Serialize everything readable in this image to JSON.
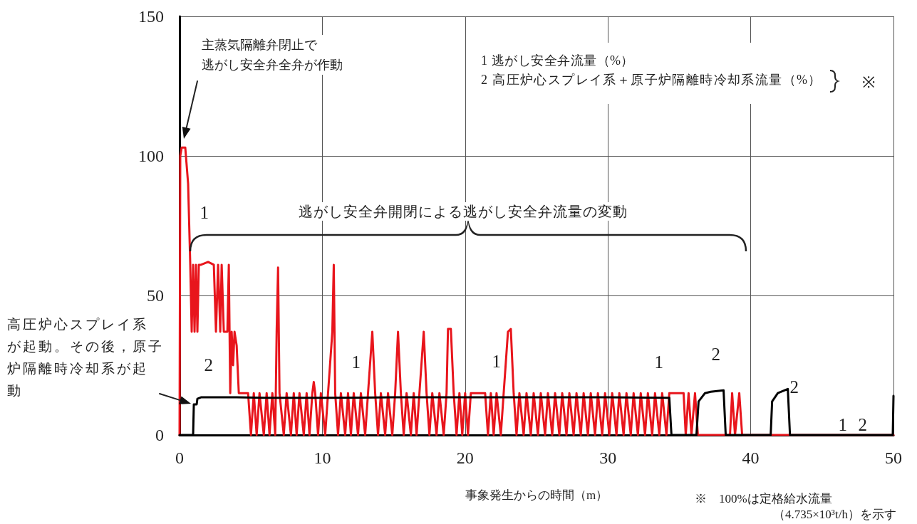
{
  "chart_data": {
    "type": "line",
    "xlabel": "事象発生からの時間（m）",
    "annotations": [
      "主蒸気隔離弁閉止で逃がし安全弁全弁が作動",
      "逃がし安全弁開閉による逃がし安全弁流量の変動",
      "高圧炉心スプレイ系が起動。その後，原子炉隔離時冷却系が起動",
      "1 逃がし安全弁流量（%）",
      "2 高圧炉心スプレイ系＋原子炉隔離時冷却系流量（%）",
      "※",
      "※　100%は定格給水流量（4.735×10³t/h）を示す",
      "1",
      "1",
      "1",
      "2",
      "2",
      "1",
      "2"
    ],
    "series": [
      {
        "name": "1",
        "color": "#e8151c",
        "x": [
          0,
          0.05,
          0.15,
          0.4,
          0.6,
          0.75,
          0.85,
          0.95,
          1.05,
          1.15,
          1.25,
          1.35,
          1.5,
          2,
          2.4,
          2.55,
          2.7,
          2.85,
          2.95,
          3.1,
          3.35,
          3.45,
          3.55,
          3.65,
          3.75,
          3.85,
          4,
          4.15,
          4.8,
          5,
          5.2,
          5.4,
          5.6,
          5.9,
          6.1,
          6.3,
          6.5,
          6.7,
          6.8,
          6.9,
          7,
          7.3,
          7.5,
          7.8,
          8,
          8.2,
          8.4,
          8.7,
          8.9,
          9.1,
          9.3,
          9.4,
          9.5,
          9.7,
          9.9,
          10.2,
          10.4,
          10.7,
          10.8,
          10.9,
          11.1,
          11.3,
          11.6,
          11.8,
          12,
          12.2,
          12.5,
          12.7,
          13,
          13.2,
          13.5,
          13.7,
          13.9,
          14.1,
          14.4,
          14.6,
          14.9,
          15.1,
          15.3,
          15.5,
          15.7,
          15.9,
          16.2,
          16.4,
          16.6,
          16.8,
          17.1,
          17.3,
          17.5,
          17.7,
          18,
          18.2,
          18.5,
          18.7,
          18.8,
          19,
          19.2,
          19.4,
          19.6,
          19.8,
          20,
          20.2,
          20.4,
          21.4,
          21.6,
          21.8,
          22,
          22.2,
          22.5,
          22.7,
          23,
          23.2,
          23.4,
          23.6,
          23.8,
          24.1,
          24.3,
          24.6,
          24.8,
          25.1,
          25.3,
          25.6,
          25.8,
          26.1,
          26.3,
          26.6,
          26.8,
          27.1,
          27.3,
          27.6,
          27.8,
          28.1,
          28.3,
          28.6,
          28.8,
          29.1,
          29.3,
          29.6,
          29.8,
          30.1,
          30.3,
          30.6,
          30.8,
          31.1,
          31.3,
          31.6,
          31.8,
          32.1,
          32.3,
          32.6,
          32.8,
          33.1,
          33.3,
          33.6,
          33.8,
          34.1,
          34.3,
          35.3,
          35.45,
          35.65,
          35.85,
          36.1,
          36.3,
          38.55,
          38.7,
          38.9,
          39.2,
          39.4,
          50
        ],
        "values": [
          0,
          100,
          103,
          103,
          90,
          61,
          37,
          61,
          37,
          61,
          37,
          61,
          61,
          62,
          61,
          37,
          61,
          37,
          61,
          37,
          37,
          61,
          15,
          37,
          25,
          37,
          32,
          15,
          15,
          0,
          15,
          0,
          15,
          0,
          15,
          0,
          15,
          0,
          37,
          60,
          15,
          0,
          15,
          0,
          15,
          0,
          15,
          0,
          15,
          0,
          15,
          19,
          15,
          0,
          15,
          0,
          15,
          37,
          61,
          15,
          0,
          15,
          0,
          15,
          0,
          15,
          0,
          15,
          0,
          15,
          37,
          15,
          0,
          15,
          0,
          15,
          0,
          15,
          37,
          15,
          0,
          15,
          0,
          15,
          0,
          15,
          37,
          15,
          0,
          15,
          0,
          15,
          0,
          15,
          38,
          38,
          15,
          0,
          15,
          0,
          15,
          0,
          15,
          15,
          0,
          15,
          0,
          15,
          0,
          15,
          37,
          38,
          15,
          0,
          15,
          0,
          15,
          0,
          15,
          0,
          15,
          0,
          15,
          0,
          15,
          0,
          15,
          0,
          15,
          0,
          15,
          0,
          15,
          0,
          15,
          0,
          15,
          0,
          15,
          0,
          15,
          0,
          15,
          0,
          15,
          0,
          15,
          0,
          15,
          0,
          15,
          0,
          15,
          0,
          15,
          0,
          15,
          15,
          0,
          15,
          0,
          15,
          0,
          0,
          15,
          0,
          15,
          0,
          0
        ]
      },
      {
        "name": "2",
        "color": "#000000",
        "x": [
          0,
          0.95,
          1,
          1.2,
          1.25,
          1.5,
          2,
          3,
          4,
          6,
          10,
          15,
          20,
          25,
          30,
          34.3,
          34.45,
          36.2,
          36.35,
          36.8,
          37.2,
          38.1,
          38.25,
          41.4,
          41.5,
          41.9,
          42.6,
          42.75,
          49.95,
          50
        ],
        "values": [
          0,
          0,
          11,
          11,
          13,
          13.5,
          13.5,
          13.5,
          13.5,
          13.3,
          13.3,
          13.5,
          13.5,
          13.5,
          13.5,
          13.3,
          0,
          0,
          12,
          15,
          15.5,
          16,
          0,
          0,
          12,
          15,
          16.5,
          0,
          0,
          14
        ]
      }
    ],
    "xlim": [
      0,
      50
    ],
    "xticks": [
      0,
      10,
      20,
      30,
      40,
      50
    ],
    "ylim": [
      0,
      150
    ],
    "yticks": [
      0,
      50,
      100,
      150
    ],
    "grid": true,
    "marker": "none",
    "line_style": "solid"
  }
}
